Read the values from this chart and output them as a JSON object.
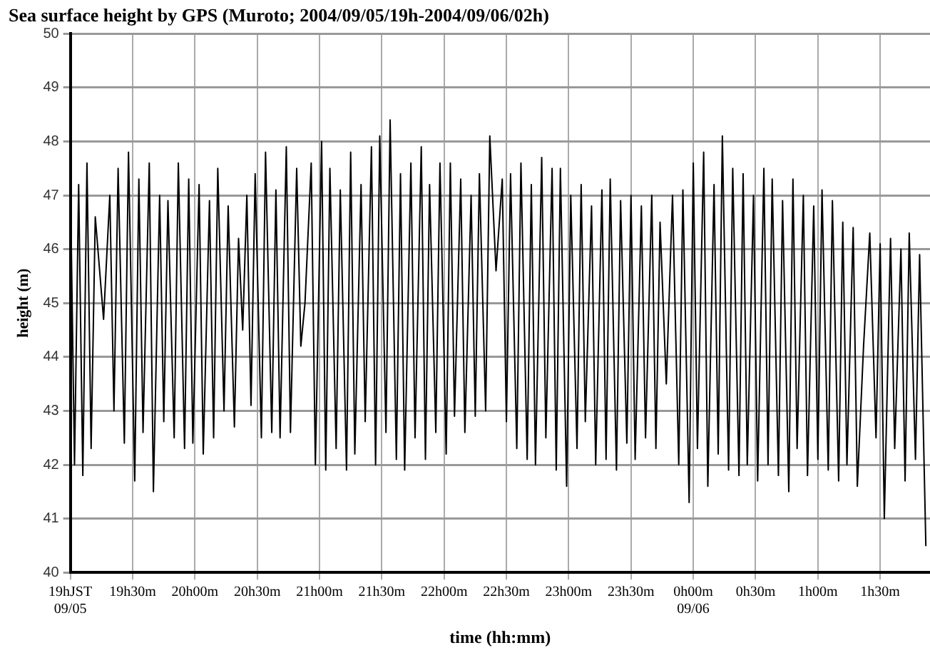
{
  "chart_data": {
    "type": "line",
    "title": "Sea surface height by GPS (Muroto; 2004/09/05/19h-2004/09/06/02h)",
    "xlabel": "time (hh:mm)",
    "ylabel": "height (m)",
    "xlim": [
      "2004-09-05T19:00",
      "2004-09-06T01:54"
    ],
    "ylim": [
      40,
      50
    ],
    "xticks": [
      {
        "value": "2004-09-05T19:00",
        "label": "19hJST\n09/05"
      },
      {
        "value": "2004-09-05T19:30",
        "label": "19h30m"
      },
      {
        "value": "2004-09-05T20:00",
        "label": "20h00m"
      },
      {
        "value": "2004-09-05T20:30",
        "label": "20h30m"
      },
      {
        "value": "2004-09-05T21:00",
        "label": "21h00m"
      },
      {
        "value": "2004-09-05T21:30",
        "label": "21h30m"
      },
      {
        "value": "2004-09-05T22:00",
        "label": "22h00m"
      },
      {
        "value": "2004-09-05T22:30",
        "label": "22h30m"
      },
      {
        "value": "2004-09-05T23:00",
        "label": "23h00m"
      },
      {
        "value": "2004-09-05T23:30",
        "label": "23h30m"
      },
      {
        "value": "2004-09-06T00:00",
        "label": "0h00m\n09/06"
      },
      {
        "value": "2004-09-06T00:30",
        "label": "0h30m"
      },
      {
        "value": "2004-09-06T01:00",
        "label": "1h00m"
      },
      {
        "value": "2004-09-06T01:30",
        "label": "1h30m"
      }
    ],
    "yticks": [
      40,
      41,
      42,
      43,
      44,
      45,
      46,
      47,
      48,
      49,
      50
    ],
    "grid": true,
    "legend": false,
    "marker": "none",
    "line_style": "solid",
    "series": [
      {
        "color": "#000000",
        "x": [
          "2004-09-05T19:00",
          "2004-09-05T19:02",
          "2004-09-05T19:04",
          "2004-09-05T19:06",
          "2004-09-05T19:08",
          "2004-09-05T19:10",
          "2004-09-05T19:12",
          "2004-09-05T19:16",
          "2004-09-05T19:19",
          "2004-09-05T19:21",
          "2004-09-05T19:23",
          "2004-09-05T19:26",
          "2004-09-05T19:28",
          "2004-09-05T19:31",
          "2004-09-05T19:33",
          "2004-09-05T19:35",
          "2004-09-05T19:38",
          "2004-09-05T19:40",
          "2004-09-05T19:43",
          "2004-09-05T19:45",
          "2004-09-05T19:47",
          "2004-09-05T19:50",
          "2004-09-05T19:52",
          "2004-09-05T19:55",
          "2004-09-05T19:57",
          "2004-09-05T19:59",
          "2004-09-05T20:02",
          "2004-09-05T20:04",
          "2004-09-05T20:07",
          "2004-09-05T20:09",
          "2004-09-05T20:11",
          "2004-09-05T20:14",
          "2004-09-05T20:16",
          "2004-09-05T20:19",
          "2004-09-05T20:21",
          "2004-09-05T20:23",
          "2004-09-05T20:25",
          "2004-09-05T20:27",
          "2004-09-05T20:29",
          "2004-09-05T20:32",
          "2004-09-05T20:34",
          "2004-09-05T20:37",
          "2004-09-05T20:39",
          "2004-09-05T20:41",
          "2004-09-05T20:44",
          "2004-09-05T20:46",
          "2004-09-05T20:49",
          "2004-09-05T20:51",
          "2004-09-05T20:53",
          "2004-09-05T20:56",
          "2004-09-05T20:58",
          "2004-09-05T21:01",
          "2004-09-05T21:03",
          "2004-09-05T21:05",
          "2004-09-05T21:08",
          "2004-09-05T21:10",
          "2004-09-05T21:13",
          "2004-09-05T21:15",
          "2004-09-05T21:17",
          "2004-09-05T21:20",
          "2004-09-05T21:22",
          "2004-09-05T21:25",
          "2004-09-05T21:27",
          "2004-09-05T21:29",
          "2004-09-05T21:32",
          "2004-09-05T21:34",
          "2004-09-05T21:37",
          "2004-09-05T21:39",
          "2004-09-05T21:41",
          "2004-09-05T21:44",
          "2004-09-05T21:46",
          "2004-09-05T21:49",
          "2004-09-05T21:51",
          "2004-09-05T21:53",
          "2004-09-05T21:56",
          "2004-09-05T21:58",
          "2004-09-05T22:01",
          "2004-09-05T22:03",
          "2004-09-05T22:05",
          "2004-09-05T22:08",
          "2004-09-05T22:10",
          "2004-09-05T22:13",
          "2004-09-05T22:15",
          "2004-09-05T22:17",
          "2004-09-05T22:20",
          "2004-09-05T22:22",
          "2004-09-05T22:25",
          "2004-09-05T22:28",
          "2004-09-05T22:30",
          "2004-09-05T22:32",
          "2004-09-05T22:35",
          "2004-09-05T22:37",
          "2004-09-05T22:40",
          "2004-09-05T22:42",
          "2004-09-05T22:44",
          "2004-09-05T22:47",
          "2004-09-05T22:49",
          "2004-09-05T22:52",
          "2004-09-05T22:54",
          "2004-09-05T22:56",
          "2004-09-05T22:59",
          "2004-09-05T23:01",
          "2004-09-05T23:04",
          "2004-09-05T23:06",
          "2004-09-05T23:08",
          "2004-09-05T23:11",
          "2004-09-05T23:13",
          "2004-09-05T23:16",
          "2004-09-05T23:18",
          "2004-09-05T23:20",
          "2004-09-05T23:23",
          "2004-09-05T23:25",
          "2004-09-05T23:28",
          "2004-09-05T23:30",
          "2004-09-05T23:32",
          "2004-09-05T23:35",
          "2004-09-05T23:37",
          "2004-09-05T23:40",
          "2004-09-05T23:42",
          "2004-09-05T23:44",
          "2004-09-05T23:47",
          "2004-09-05T23:50",
          "2004-09-05T23:53",
          "2004-09-05T23:55",
          "2004-09-05T23:58",
          "2004-09-06T00:00",
          "2004-09-06T00:02",
          "2004-09-06T00:05",
          "2004-09-06T00:07",
          "2004-09-06T00:10",
          "2004-09-06T00:12",
          "2004-09-06T00:14",
          "2004-09-06T00:17",
          "2004-09-06T00:19",
          "2004-09-06T00:22",
          "2004-09-06T00:24",
          "2004-09-06T00:26",
          "2004-09-06T00:29",
          "2004-09-06T00:31",
          "2004-09-06T00:34",
          "2004-09-06T00:36",
          "2004-09-06T00:38",
          "2004-09-06T00:41",
          "2004-09-06T00:43",
          "2004-09-06T00:46",
          "2004-09-06T00:48",
          "2004-09-06T00:50",
          "2004-09-06T00:53",
          "2004-09-06T00:55",
          "2004-09-06T00:58",
          "2004-09-06T01:00",
          "2004-09-06T01:02",
          "2004-09-06T01:05",
          "2004-09-06T01:07",
          "2004-09-06T01:10",
          "2004-09-06T01:12",
          "2004-09-06T01:14",
          "2004-09-06T01:17",
          "2004-09-06T01:19",
          "2004-09-06T01:22",
          "2004-09-06T01:25",
          "2004-09-06T01:28",
          "2004-09-06T01:30",
          "2004-09-06T01:32",
          "2004-09-06T01:35",
          "2004-09-06T01:37",
          "2004-09-06T01:40",
          "2004-09-06T01:42",
          "2004-09-06T01:44",
          "2004-09-06T01:47",
          "2004-09-06T01:49",
          "2004-09-06T01:52"
        ],
        "values": [
          47.3,
          42.0,
          47.2,
          41.8,
          47.6,
          42.3,
          46.6,
          44.7,
          47.0,
          43.0,
          47.5,
          42.4,
          47.8,
          41.7,
          47.3,
          42.6,
          47.6,
          41.5,
          47.0,
          42.8,
          46.9,
          42.5,
          47.6,
          42.3,
          47.3,
          42.4,
          47.2,
          42.2,
          46.9,
          42.5,
          47.5,
          43.0,
          46.8,
          42.7,
          46.2,
          44.5,
          47.0,
          43.1,
          47.4,
          42.5,
          47.8,
          42.6,
          47.1,
          42.5,
          47.9,
          42.6,
          47.5,
          44.2,
          45.0,
          47.6,
          42.0,
          48.0,
          41.9,
          47.5,
          42.3,
          47.1,
          41.9,
          47.8,
          42.2,
          47.2,
          42.8,
          47.9,
          42.0,
          48.1,
          42.6,
          48.4,
          42.1,
          47.4,
          41.9,
          47.6,
          42.5,
          47.9,
          42.1,
          47.2,
          42.6,
          47.6,
          42.2,
          47.6,
          42.9,
          47.3,
          42.6,
          47.0,
          42.9,
          47.4,
          43.0,
          48.1,
          45.6,
          47.3,
          42.8,
          47.4,
          42.3,
          47.6,
          42.1,
          47.2,
          42.0,
          47.7,
          42.5,
          47.5,
          41.9,
          47.5,
          41.6,
          47.0,
          42.3,
          47.2,
          42.8,
          46.8,
          42.0,
          47.1,
          42.1,
          47.3,
          41.9,
          46.9,
          42.4,
          47.0,
          42.1,
          46.8,
          42.5,
          47.0,
          42.3,
          46.5,
          43.5,
          47.0,
          42.0,
          47.1,
          41.3,
          47.6,
          42.3,
          47.8,
          41.6,
          47.2,
          42.2,
          48.1,
          41.9,
          47.5,
          41.8,
          47.4,
          42.0,
          47.0,
          41.7,
          47.5,
          42.0,
          47.3,
          41.8,
          46.9,
          41.5,
          47.3,
          42.3,
          47.0,
          41.8,
          46.8,
          42.1,
          47.1,
          41.9,
          46.9,
          41.7,
          46.5,
          42.0,
          46.4,
          41.6,
          44.2,
          46.3,
          42.5,
          46.1,
          41.0,
          46.2,
          42.3,
          46.0,
          41.7,
          46.3,
          42.1,
          45.9,
          40.5
        ]
      }
    ]
  }
}
